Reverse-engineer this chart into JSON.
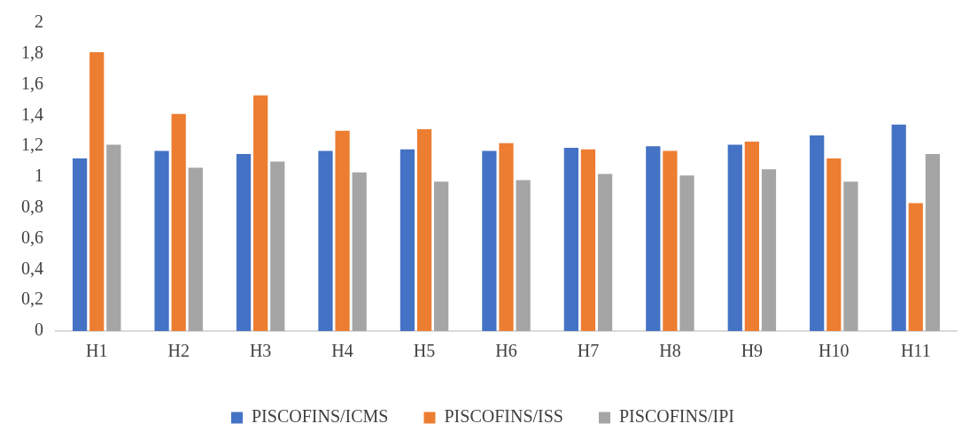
{
  "chart_data": {
    "type": "bar",
    "categories": [
      "H1",
      "H2",
      "H3",
      "H4",
      "H5",
      "H6",
      "H7",
      "H8",
      "H9",
      "H10",
      "H11"
    ],
    "series": [
      {
        "name": "PISCOFINS/ICMS",
        "color": "#4472c4",
        "values": [
          1.12,
          1.17,
          1.15,
          1.17,
          1.18,
          1.17,
          1.19,
          1.2,
          1.21,
          1.27,
          1.34
        ]
      },
      {
        "name": "PISCOFINS/ISS",
        "color": "#ed7d31",
        "values": [
          1.81,
          1.41,
          1.53,
          1.3,
          1.31,
          1.22,
          1.18,
          1.17,
          1.23,
          1.12,
          0.83
        ]
      },
      {
        "name": "PISCOFINS/IPI",
        "color": "#a5a5a5",
        "values": [
          1.21,
          1.06,
          1.1,
          1.03,
          0.97,
          0.98,
          1.02,
          1.01,
          1.05,
          0.97,
          1.15
        ]
      }
    ],
    "ylim": [
      0,
      2
    ],
    "yticks": [
      {
        "value": 0,
        "label": "0"
      },
      {
        "value": 0.2,
        "label": "0,2"
      },
      {
        "value": 0.4,
        "label": "0,4"
      },
      {
        "value": 0.6,
        "label": "0,6"
      },
      {
        "value": 0.8,
        "label": "0,8"
      },
      {
        "value": 1,
        "label": "1"
      },
      {
        "value": 1.2,
        "label": "1,2"
      },
      {
        "value": 1.4,
        "label": "1,4"
      },
      {
        "value": 1.6,
        "label": "1,6"
      },
      {
        "value": 1.8,
        "label": "1,8"
      },
      {
        "value": 2,
        "label": "2"
      }
    ],
    "grid": false,
    "legend": "bottom"
  }
}
